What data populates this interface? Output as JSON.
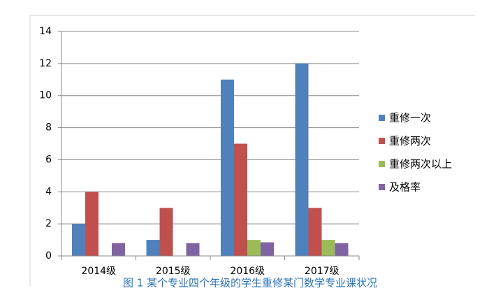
{
  "chart_data": {
    "type": "bar",
    "caption": "图 1 某个专业四个年级的学生重修某门数学专业课状况",
    "categories": [
      "2014级",
      "2015级",
      "2016级",
      "2017级"
    ],
    "series": [
      {
        "name": "重修一次",
        "color": "#4f81bd",
        "values": [
          2,
          1,
          11,
          12
        ]
      },
      {
        "name": "重修两次",
        "color": "#c0504d",
        "values": [
          4,
          3,
          7,
          3
        ]
      },
      {
        "name": "重修两次以上",
        "color": "#9bbb59",
        "values": [
          0,
          0,
          1,
          1
        ]
      },
      {
        "name": "及格率",
        "color": "#8064a2",
        "values": [
          0.8,
          0.8,
          0.85,
          0.8
        ]
      }
    ],
    "ylim": [
      0,
      14
    ],
    "yticks": [
      0,
      2,
      4,
      6,
      8,
      10,
      12,
      14
    ],
    "grid": true,
    "legend": "right"
  }
}
